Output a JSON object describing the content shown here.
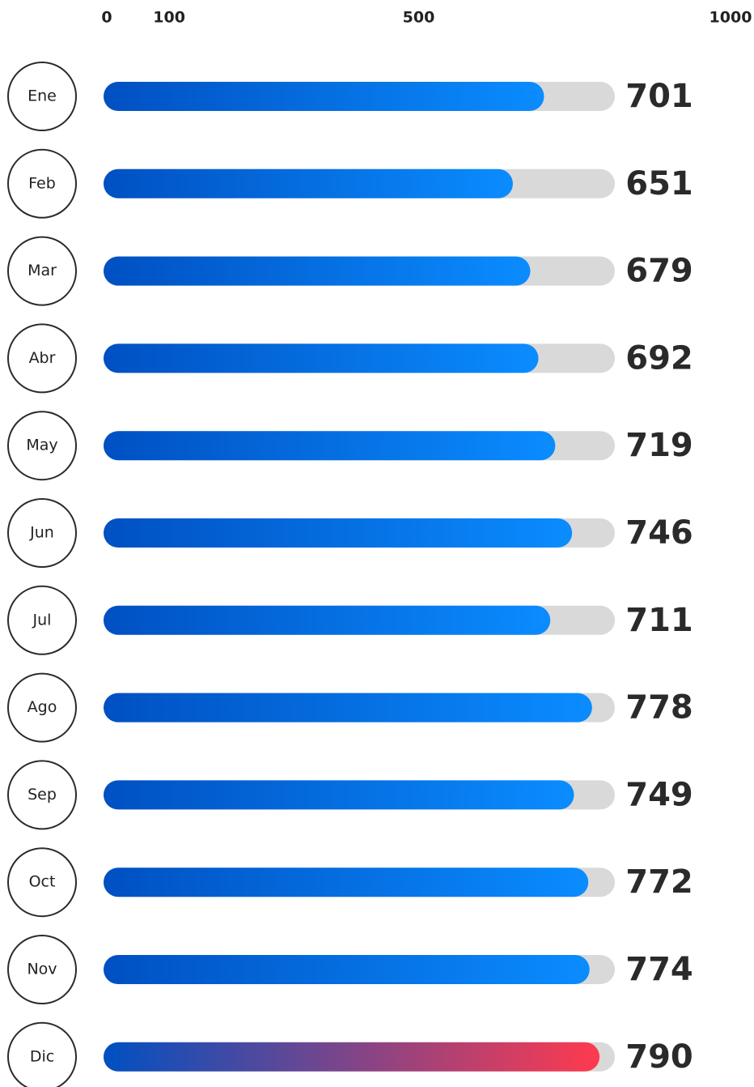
{
  "chart_data": {
    "type": "bar",
    "orientation": "horizontal",
    "categories": [
      "Ene",
      "Feb",
      "Mar",
      "Abr",
      "May",
      "Jun",
      "Jul",
      "Ago",
      "Sep",
      "Oct",
      "Nov",
      "Dic"
    ],
    "values": [
      701,
      651,
      679,
      692,
      719,
      746,
      711,
      778,
      749,
      772,
      774,
      790
    ],
    "xlim": [
      0,
      1000
    ],
    "xticks": [
      0,
      100,
      500,
      1000
    ],
    "colors": [
      "#0050c2",
      "#0a8cff"
    ],
    "highlight": "Dic",
    "highlight_colors": [
      "#0050c2",
      "#ff3a4f"
    ],
    "track_color": "#d9d9d9"
  }
}
